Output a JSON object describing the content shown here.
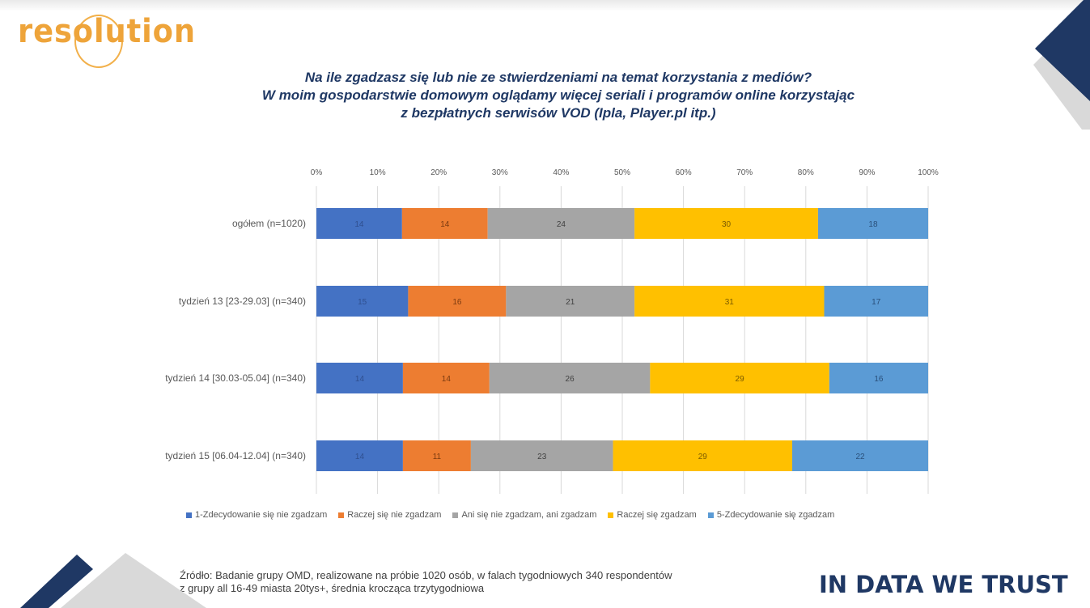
{
  "logo": {
    "text": "resolution"
  },
  "title": {
    "lines": [
      "Na ile zgadzasz się lub nie ze stwierdzeniami na temat korzystania z mediów?",
      "W moim gospodarstwie domowym oglądamy więcej seriali i programów online korzystając",
      "z bezpłatnych serwisów VOD (Ipla, Player.pl itp.)"
    ]
  },
  "chart_data": {
    "type": "bar",
    "orientation": "horizontal",
    "stacked": "percent",
    "title": "Na ile zgadzasz się lub nie ze stwierdzeniami na temat korzystania z mediów? W moim gospodarstwie domowym oglądamy więcej seriali i programów online korzystając z bezpłatnych serwisów VOD (Ipla, Player.pl itp.)",
    "xlabel": "",
    "ylabel": "",
    "xlim": [
      0,
      100
    ],
    "x_ticks": [
      "0%",
      "10%",
      "20%",
      "30%",
      "40%",
      "50%",
      "60%",
      "70%",
      "80%",
      "90%",
      "100%"
    ],
    "grid": true,
    "legend_position": "bottom",
    "categories": [
      "ogółem (n=1020)",
      "tydzień 13 [23-29.03] (n=340)",
      "tydzień 14 [30.03-05.04] (n=340)",
      "tydzień 15 [06.04-12.04] (n=340)"
    ],
    "series": [
      {
        "name": "1-Zdecydowanie się nie zgadzam",
        "color": "#4472c4",
        "label_color": "#2f4f8f",
        "values": [
          14,
          15,
          14,
          14
        ]
      },
      {
        "name": "Raczej się nie zgadzam",
        "color": "#ed7d31",
        "label_color": "#7a3a10",
        "values": [
          14,
          16,
          14,
          11
        ]
      },
      {
        "name": "Ani się nie zgadzam, ani zgadzam",
        "color": "#a5a5a5",
        "label_color": "#404040",
        "values": [
          24,
          21,
          26,
          23
        ]
      },
      {
        "name": "Raczej się zgadzam",
        "color": "#ffc000",
        "label_color": "#7a5a00",
        "values": [
          30,
          31,
          29,
          29
        ]
      },
      {
        "name": "5-Zdecydowanie się zgadzam",
        "color": "#5b9bd5",
        "label_color": "#2a4f7a",
        "values": [
          18,
          17,
          16,
          22
        ]
      }
    ]
  },
  "footer": {
    "source_lines": [
      "Źródło: Badanie grupy OMD, realizowane na próbie 1020 osób, w falach tygodniowych  340 respondentów",
      "z grupy all 16-49 miasta 20tys+, średnia krocząca trzytygodniowa"
    ],
    "tagline": "IN DATA WE TRUST"
  },
  "colors": {
    "brand_navy": "#1f3864",
    "brand_orange": "#eea43a",
    "accent_gray": "#d9d9d9"
  }
}
